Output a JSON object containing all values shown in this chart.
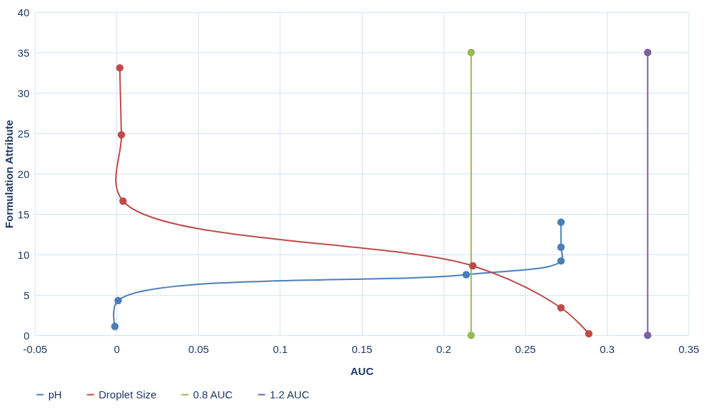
{
  "chart_data": {
    "type": "line",
    "xlabel": "AUC",
    "ylabel": "Formulation Attribute",
    "xlim": [
      -0.05,
      0.35
    ],
    "xticks": [
      -0.05,
      0,
      0.05,
      0.1,
      0.15,
      0.2,
      0.25,
      0.3,
      0.35
    ],
    "ylim": [
      0,
      40
    ],
    "yticks": [
      0,
      5,
      10,
      15,
      20,
      25,
      30,
      35,
      40
    ],
    "grid": true,
    "legend": "bottom",
    "marker": "circle",
    "line_style": "solid",
    "series": [
      {
        "name": "pH",
        "color": "#4a7ebb",
        "x": [
          -0.001,
          0.001,
          0.214,
          0.272,
          0.272,
          0.272
        ],
        "values": [
          1.1,
          4.3,
          7.5,
          9.2,
          10.9,
          14.0
        ]
      },
      {
        "name": "Droplet Size",
        "color": "#be4b48",
        "x": [
          0.002,
          0.003,
          0.004,
          0.218,
          0.272,
          0.289
        ],
        "values": [
          33.1,
          24.8,
          16.6,
          8.6,
          3.4,
          0.2
        ]
      },
      {
        "name": "0.8 AUC",
        "color": "#98b954",
        "x": [
          0.217,
          0.217
        ],
        "values": [
          0,
          35
        ]
      },
      {
        "name": "1.2 AUC",
        "color": "#7d60a0",
        "x": [
          0.325,
          0.325
        ],
        "values": [
          0,
          35
        ]
      }
    ]
  }
}
